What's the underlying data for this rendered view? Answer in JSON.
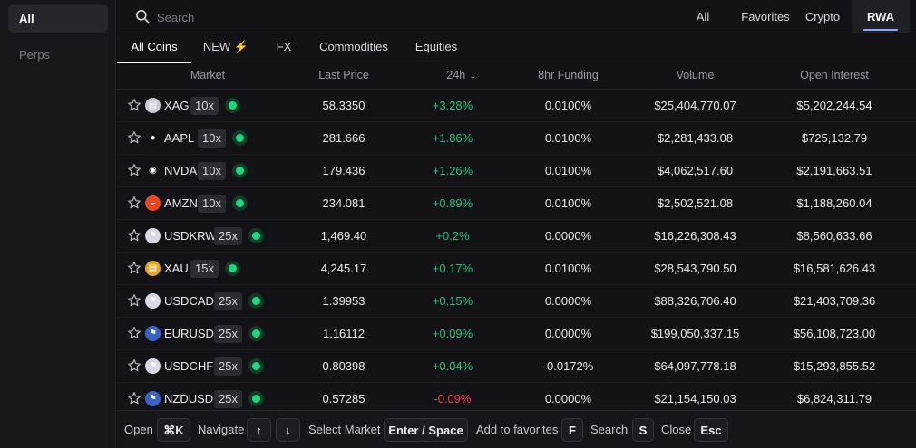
{
  "sidebar": {
    "items": [
      {
        "label": "All"
      },
      {
        "label": "Perps"
      }
    ]
  },
  "search": {
    "placeholder": "Search",
    "icon": "search-icon"
  },
  "category_tabs": [
    {
      "label": "All"
    },
    {
      "label": "Favorites"
    },
    {
      "label": "Crypto"
    },
    {
      "label": "RWA"
    }
  ],
  "sub_tabs": [
    {
      "label": "All Coins"
    },
    {
      "label": "NEW ⚡"
    },
    {
      "label": "FX"
    },
    {
      "label": "Commodities"
    },
    {
      "label": "Equities"
    }
  ],
  "table": {
    "headers": {
      "market": "Market",
      "last_price": "Last Price",
      "change": "24h",
      "funding": "8hr Funding",
      "volume": "Volume",
      "open_interest": "Open Interest"
    },
    "rows": [
      {
        "symbol": "XAG",
        "leverage": "10x",
        "price": "58.3350",
        "change": "+3.28%",
        "direction": "up",
        "funding": "0.0100%",
        "volume": "$25,404,770.07",
        "open_interest": "$5,202,244.54",
        "icon": "silver-icon",
        "icon_color": "#c8c8d2",
        "icon_glyph": "▤"
      },
      {
        "symbol": "AAPL",
        "leverage": "10x",
        "price": "281.666",
        "change": "+1.86%",
        "direction": "up",
        "funding": "0.0100%",
        "volume": "$2,281,433.08",
        "open_interest": "$725,132.79",
        "icon": "apple-icon",
        "icon_color": "#121217",
        "icon_glyph": "●"
      },
      {
        "symbol": "NVDA",
        "leverage": "10x",
        "price": "179.436",
        "change": "+1.26%",
        "direction": "up",
        "funding": "0.0100%",
        "volume": "$4,062,517.60",
        "open_interest": "$2,191,663.51",
        "icon": "nvidia-icon",
        "icon_color": "#121217",
        "icon_glyph": "◉"
      },
      {
        "symbol": "AMZN",
        "leverage": "10x",
        "price": "234.081",
        "change": "+0.89%",
        "direction": "up",
        "funding": "0.0100%",
        "volume": "$2,502,521.08",
        "open_interest": "$1,188,260.04",
        "icon": "amazon-icon",
        "icon_color": "#e8461e",
        "icon_glyph": "⌣"
      },
      {
        "symbol": "USDKRW",
        "leverage": "25x",
        "price": "1,469.40",
        "change": "+0.2%",
        "direction": "up",
        "funding": "0.0000%",
        "volume": "$16,226,308.43",
        "open_interest": "$8,560,633.66",
        "icon": "usd-krw-flag-icon",
        "icon_color": "#d9d9e6",
        "icon_glyph": "⚑"
      },
      {
        "symbol": "XAU",
        "leverage": "15x",
        "price": "4,245.17",
        "change": "+0.17%",
        "direction": "up",
        "funding": "0.0100%",
        "volume": "$28,543,790.50",
        "open_interest": "$16,581,626.43",
        "icon": "gold-icon",
        "icon_color": "#e0a82a",
        "icon_glyph": "▤"
      },
      {
        "symbol": "USDCAD",
        "leverage": "25x",
        "price": "1.39953",
        "change": "+0.15%",
        "direction": "up",
        "funding": "0.0000%",
        "volume": "$88,326,706.40",
        "open_interest": "$21,403,709.36",
        "icon": "usd-cad-flag-icon",
        "icon_color": "#d9d9e6",
        "icon_glyph": "⚑"
      },
      {
        "symbol": "EURUSD",
        "leverage": "25x",
        "price": "1.16112",
        "change": "+0.09%",
        "direction": "up",
        "funding": "0.0000%",
        "volume": "$199,050,337.15",
        "open_interest": "$56,108,723.00",
        "icon": "eur-usd-flag-icon",
        "icon_color": "#3a63c9",
        "icon_glyph": "⚑"
      },
      {
        "symbol": "USDCHF",
        "leverage": "25x",
        "price": "0.80398",
        "change": "+0.04%",
        "direction": "up",
        "funding": "-0.0172%",
        "volume": "$64,097,778.18",
        "open_interest": "$15,293,855.52",
        "icon": "usd-chf-flag-icon",
        "icon_color": "#d9d9e6",
        "icon_glyph": "⚑"
      },
      {
        "symbol": "NZDUSD",
        "leverage": "25x",
        "price": "0.57285",
        "change": "-0.09%",
        "direction": "down",
        "funding": "0.0000%",
        "volume": "$21,154,150.03",
        "open_interest": "$6,824,311.79",
        "icon": "nzd-usd-flag-icon",
        "icon_color": "#3a63c9",
        "icon_glyph": "⚑"
      }
    ]
  },
  "footer": {
    "open_label": "Open",
    "open_key": "⌘K",
    "navigate_label": "Navigate",
    "up_key": "↑",
    "down_key": "↓",
    "select_label": "Select Market",
    "select_key": "Enter / Space",
    "favorite_label": "Add to favorites",
    "favorite_key": "F",
    "search_label": "Search",
    "search_key": "S",
    "close_label": "Close",
    "close_key": "Esc"
  },
  "colors": {
    "positive": "#22c47a",
    "negative": "#f0414c",
    "accent": "#8aa8ff",
    "live_dot": "#1fd77f"
  }
}
